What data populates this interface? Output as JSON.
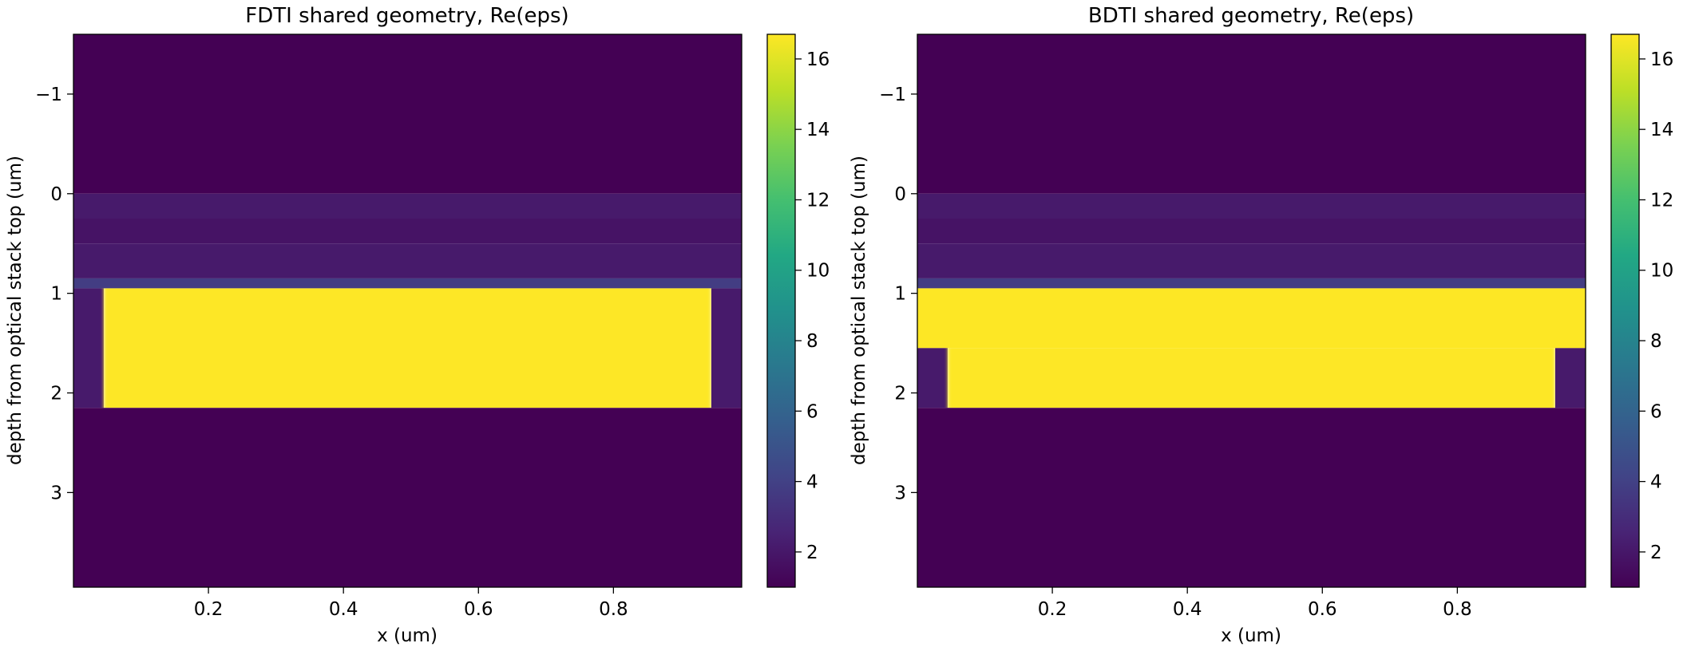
{
  "chart_data": [
    {
      "type": "heatmap",
      "title": "FDTI shared geometry, Re(eps)",
      "xlabel": "x (um)",
      "ylabel": "depth from optical stack top (um)",
      "xlim": [
        0.0,
        0.99
      ],
      "ylim": [
        3.95,
        -1.6
      ],
      "y_inverted": true,
      "xticks": [
        "0.2",
        "0.4",
        "0.6",
        "0.8"
      ],
      "xtick_values": [
        0.2,
        0.4,
        0.6,
        0.8
      ],
      "yticks": [
        "−1",
        "0",
        "1",
        "2",
        "3"
      ],
      "ytick_values": [
        -1,
        0,
        1,
        2,
        3
      ],
      "colormap": "viridis",
      "colorbar": {
        "range": [
          1.0,
          16.7
        ],
        "ticks": [
          "2",
          "4",
          "6",
          "8",
          "10",
          "12",
          "14",
          "16"
        ],
        "tick_values": [
          2,
          4,
          6,
          8,
          10,
          12,
          14,
          16
        ]
      },
      "regions": [
        {
          "name": "air-top",
          "x0": 0.0,
          "x1": 0.99,
          "y0": -1.6,
          "y1": 0.0,
          "value": 1.0
        },
        {
          "name": "stack-layer-1",
          "x0": 0.0,
          "x1": 0.99,
          "y0": 0.0,
          "y1": 0.25,
          "value": 2.1
        },
        {
          "name": "stack-layer-2",
          "x0": 0.0,
          "x1": 0.99,
          "y0": 0.25,
          "y1": 0.5,
          "value": 1.8
        },
        {
          "name": "stack-layer-3",
          "x0": 0.0,
          "x1": 0.99,
          "y0": 0.5,
          "y1": 0.85,
          "value": 2.1
        },
        {
          "name": "stack-layer-4",
          "x0": 0.0,
          "x1": 0.99,
          "y0": 0.85,
          "y1": 0.95,
          "value": 3.8
        },
        {
          "name": "trench-left",
          "x0": 0.0,
          "x1": 0.045,
          "y0": 0.95,
          "y1": 2.15,
          "value": 2.1
        },
        {
          "name": "silicon",
          "x0": 0.045,
          "x1": 0.945,
          "y0": 0.95,
          "y1": 2.15,
          "value": 16.7
        },
        {
          "name": "trench-right",
          "x0": 0.945,
          "x1": 0.99,
          "y0": 0.95,
          "y1": 2.15,
          "value": 2.1
        },
        {
          "name": "substrate",
          "x0": 0.0,
          "x1": 0.99,
          "y0": 2.15,
          "y1": 3.95,
          "value": 1.0
        }
      ]
    },
    {
      "type": "heatmap",
      "title": "BDTI shared geometry, Re(eps)",
      "xlabel": "x (um)",
      "ylabel": "depth from optical stack top (um)",
      "xlim": [
        0.0,
        0.99
      ],
      "ylim": [
        3.95,
        -1.6
      ],
      "y_inverted": true,
      "xticks": [
        "0.2",
        "0.4",
        "0.6",
        "0.8"
      ],
      "xtick_values": [
        0.2,
        0.4,
        0.6,
        0.8
      ],
      "yticks": [
        "−1",
        "0",
        "1",
        "2",
        "3"
      ],
      "ytick_values": [
        -1,
        0,
        1,
        2,
        3
      ],
      "colormap": "viridis",
      "colorbar": {
        "range": [
          1.0,
          16.7
        ],
        "ticks": [
          "2",
          "4",
          "6",
          "8",
          "10",
          "12",
          "14",
          "16"
        ],
        "tick_values": [
          2,
          4,
          6,
          8,
          10,
          12,
          14,
          16
        ]
      },
      "regions": [
        {
          "name": "air-top",
          "x0": 0.0,
          "x1": 0.99,
          "y0": -1.6,
          "y1": 0.0,
          "value": 1.0
        },
        {
          "name": "stack-layer-1",
          "x0": 0.0,
          "x1": 0.99,
          "y0": 0.0,
          "y1": 0.25,
          "value": 2.1
        },
        {
          "name": "stack-layer-2",
          "x0": 0.0,
          "x1": 0.99,
          "y0": 0.25,
          "y1": 0.5,
          "value": 1.8
        },
        {
          "name": "stack-layer-3",
          "x0": 0.0,
          "x1": 0.99,
          "y0": 0.5,
          "y1": 0.85,
          "value": 2.1
        },
        {
          "name": "stack-layer-4",
          "x0": 0.0,
          "x1": 0.99,
          "y0": 0.85,
          "y1": 0.95,
          "value": 3.8
        },
        {
          "name": "silicon-upper",
          "x0": 0.0,
          "x1": 0.99,
          "y0": 0.95,
          "y1": 1.55,
          "value": 16.7
        },
        {
          "name": "trench-left",
          "x0": 0.0,
          "x1": 0.045,
          "y0": 1.55,
          "y1": 2.15,
          "value": 2.1
        },
        {
          "name": "silicon-lower",
          "x0": 0.045,
          "x1": 0.945,
          "y0": 1.55,
          "y1": 2.15,
          "value": 16.7
        },
        {
          "name": "trench-right",
          "x0": 0.945,
          "x1": 0.99,
          "y0": 1.55,
          "y1": 2.15,
          "value": 2.1
        },
        {
          "name": "substrate",
          "x0": 0.0,
          "x1": 0.99,
          "y0": 2.15,
          "y1": 3.95,
          "value": 1.0
        }
      ]
    }
  ]
}
